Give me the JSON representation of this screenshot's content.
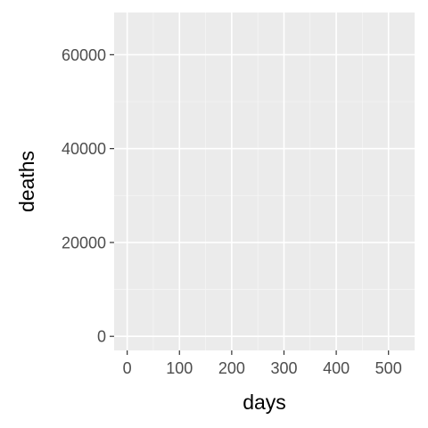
{
  "chart_data": {
    "type": "line",
    "title": "",
    "xlabel": "days",
    "ylabel": "deaths",
    "xlim": [
      -25,
      550
    ],
    "ylim": [
      -3000,
      69000
    ],
    "x_ticks": [
      0,
      100,
      200,
      300,
      400,
      500
    ],
    "x_tick_labels": [
      "0",
      "100",
      "200",
      "300",
      "400",
      "500"
    ],
    "y_ticks": [
      0,
      20000,
      40000,
      60000
    ],
    "y_tick_labels": [
      "0",
      "20000",
      "40000",
      "60000"
    ],
    "x_minor_ticks": [
      50,
      150,
      250,
      350,
      450
    ],
    "y_minor_ticks": [
      10000,
      30000,
      50000
    ],
    "grid": true,
    "legend": "none",
    "series": [],
    "colors": {
      "panel_background": "#ebebeb",
      "grid_major": "#ffffff",
      "grid_minor": "#f5f5f5",
      "tick_mark": "#333333",
      "tick_label": "#4d4d4d",
      "axis_title": "#000000"
    }
  }
}
